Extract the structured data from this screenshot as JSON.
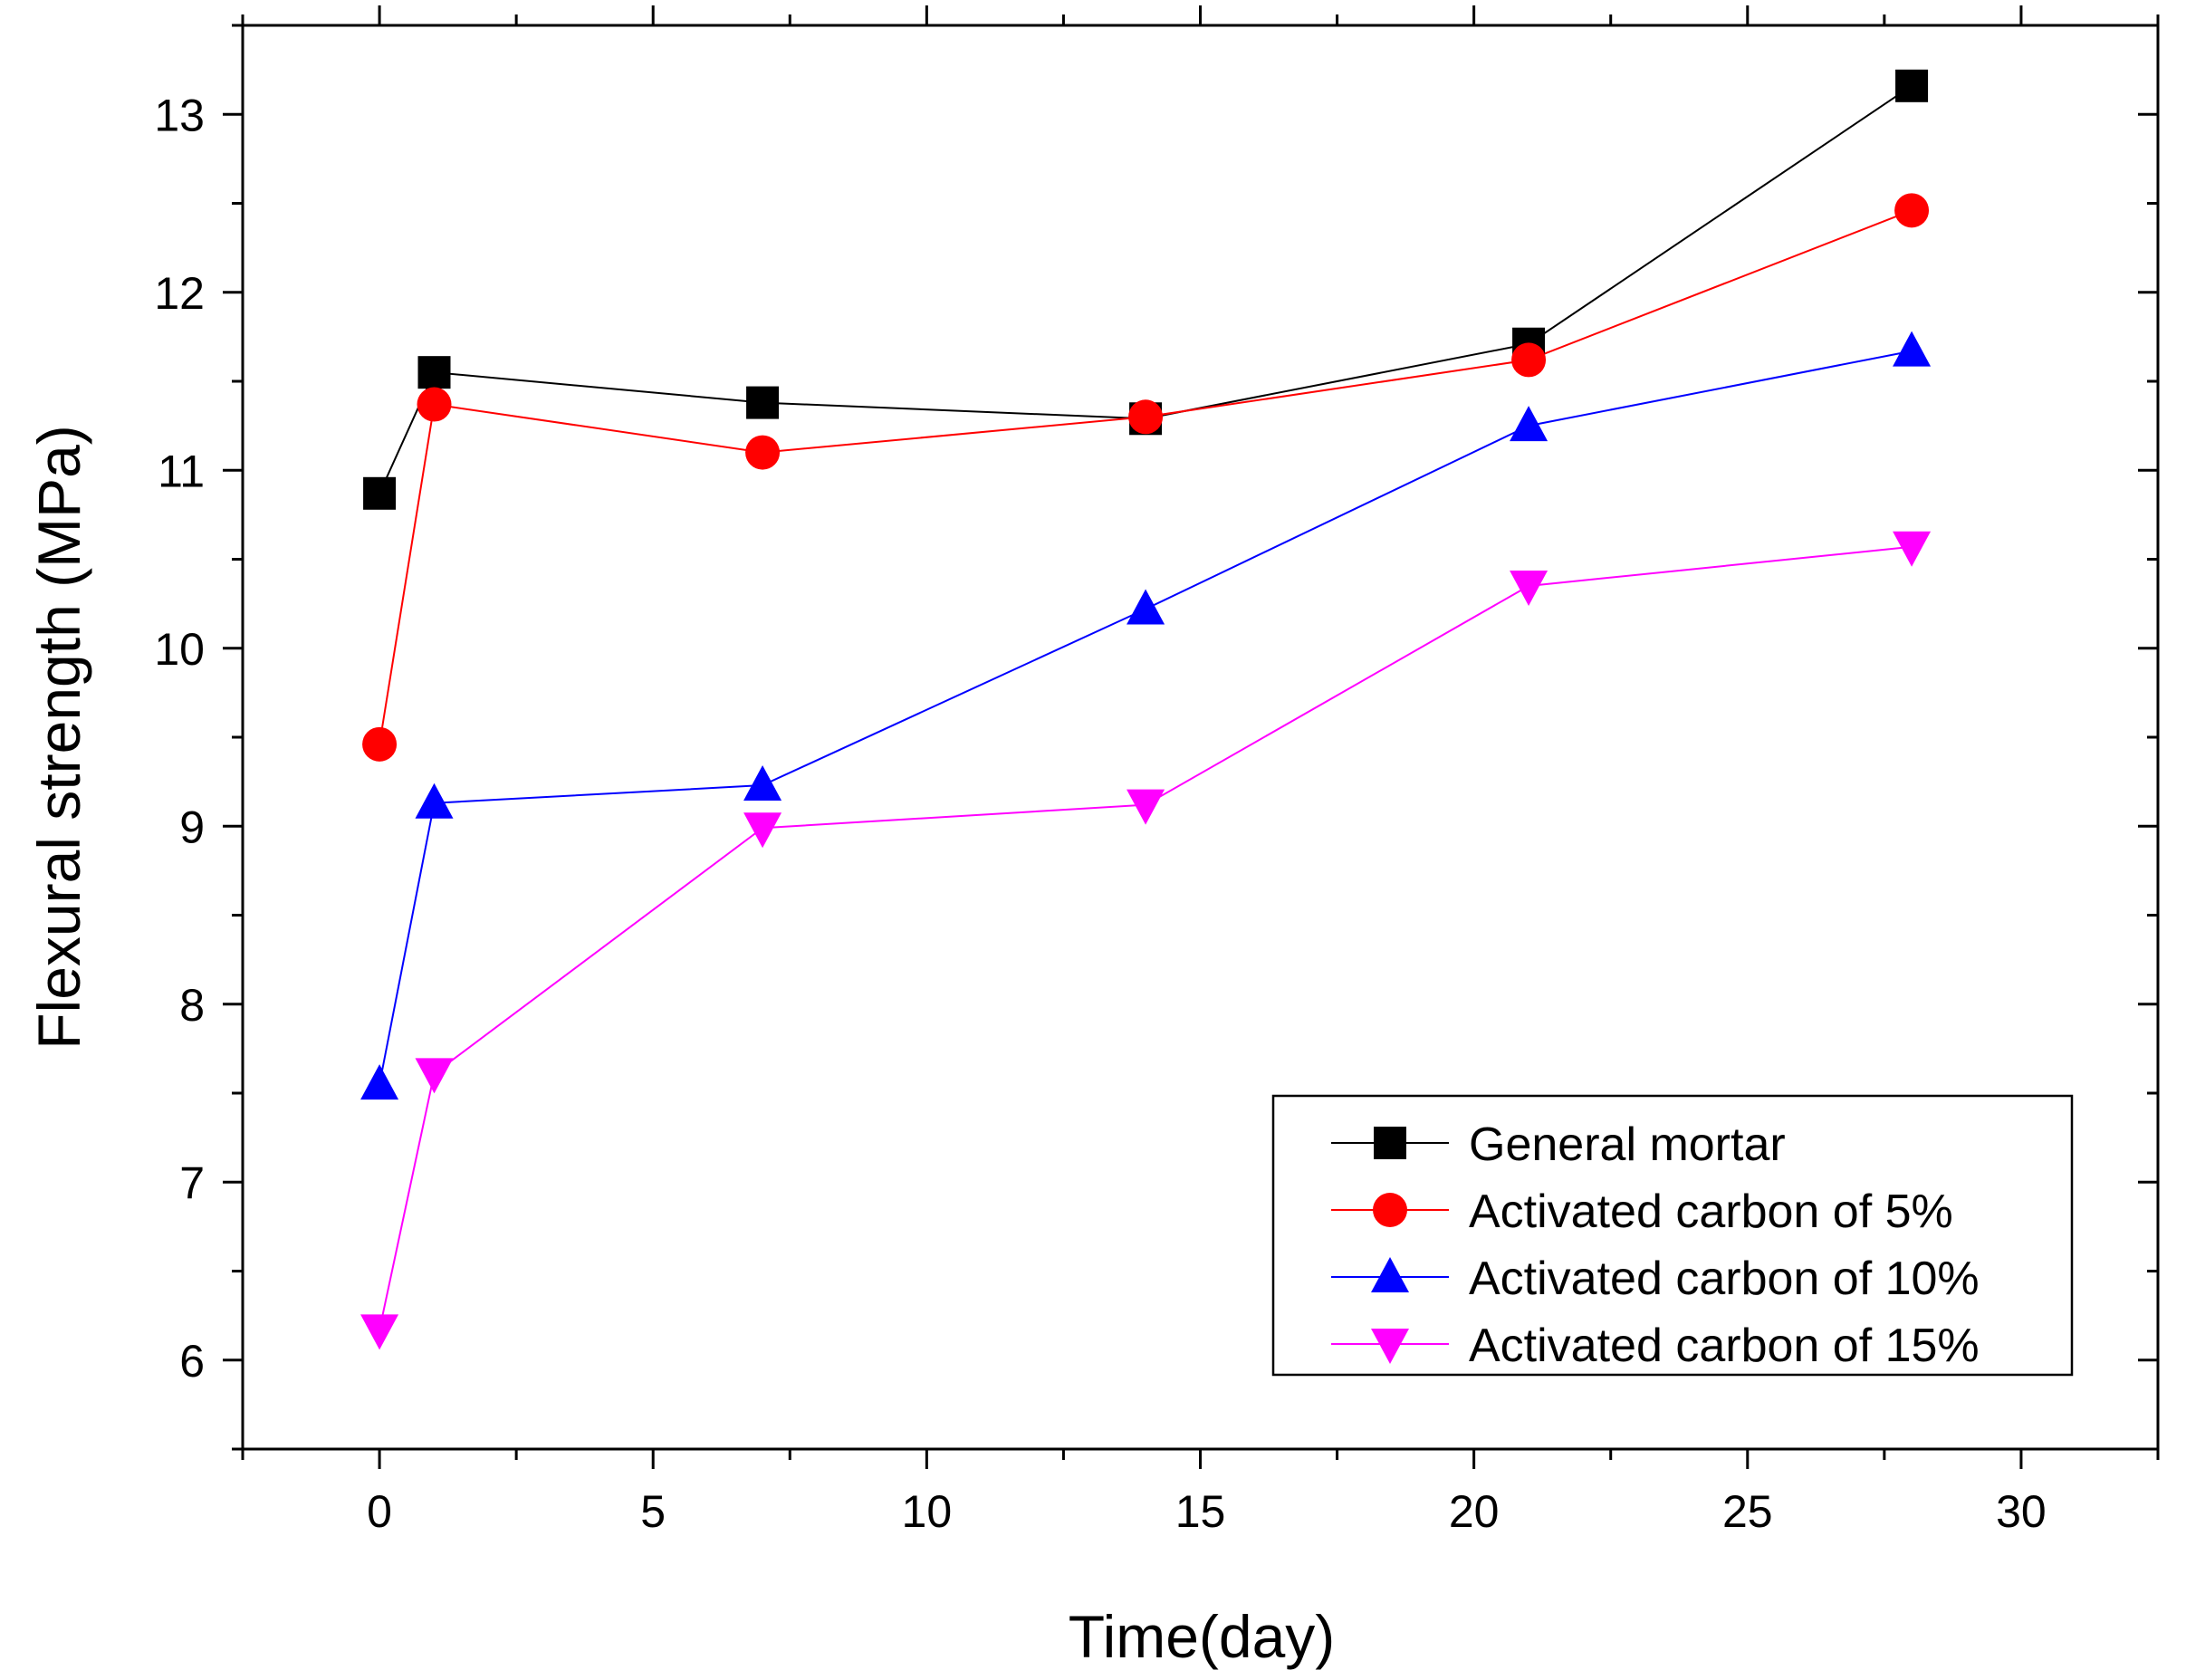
{
  "chart_data": {
    "type": "line",
    "title": "",
    "xlabel": "Time(day)",
    "ylabel": "Flexural strength (MPa)",
    "xlim": [
      -2.5,
      32.5
    ],
    "ylim": [
      5.5,
      13.5
    ],
    "x_ticks": [
      0,
      5,
      10,
      15,
      20,
      25,
      30
    ],
    "x_tick_labels": [
      "0",
      "5",
      "10",
      "15",
      "20",
      "25",
      "30"
    ],
    "y_ticks": [
      6,
      7,
      8,
      9,
      10,
      11,
      12,
      13
    ],
    "y_tick_labels": [
      "6",
      "7",
      "8",
      "9",
      "10",
      "11",
      "12",
      "13"
    ],
    "grid": false,
    "legend_position": "bottom-right",
    "x": [
      0,
      1,
      7,
      14,
      21,
      28
    ],
    "series": [
      {
        "name": "General mortar",
        "color": "#000000",
        "marker": "square",
        "values": [
          10.87,
          11.55,
          11.38,
          11.29,
          11.71,
          13.16
        ]
      },
      {
        "name": "Activated carbon of 5%",
        "color": "#ff0000",
        "marker": "circle",
        "values": [
          9.46,
          11.37,
          11.1,
          11.3,
          11.62,
          12.46
        ]
      },
      {
        "name": "Activated carbon of 10%",
        "color": "#0000ff",
        "marker": "triangle-up",
        "values": [
          7.55,
          9.13,
          9.23,
          10.22,
          11.25,
          11.67
        ]
      },
      {
        "name": "Activated carbon of 15%",
        "color": "#ff00ff",
        "marker": "triangle-down",
        "values": [
          6.17,
          7.61,
          8.99,
          9.12,
          10.35,
          10.57
        ]
      }
    ]
  }
}
